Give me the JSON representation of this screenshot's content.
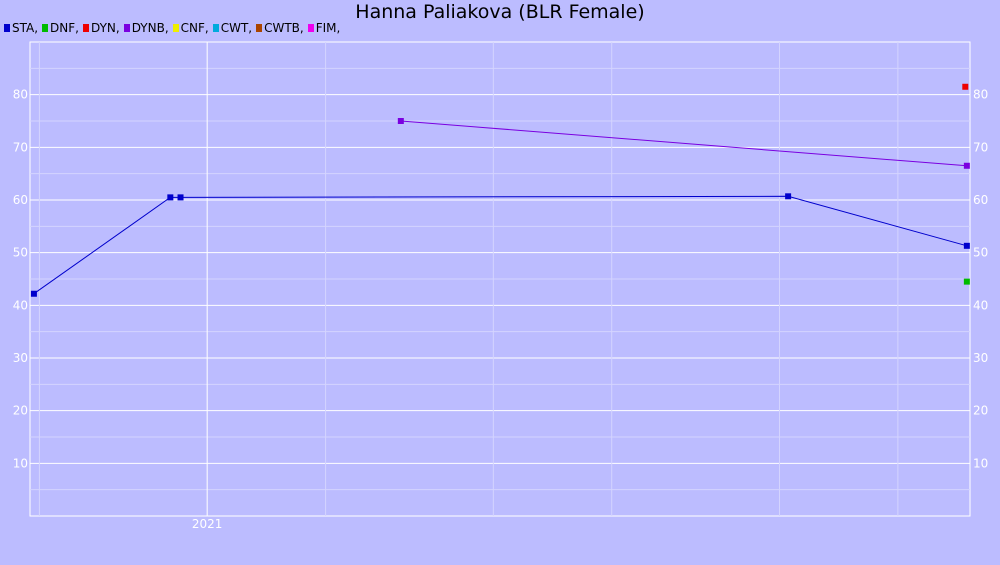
{
  "chart_data": {
    "type": "line",
    "title": "Hanna Paliakova (BLR Female)",
    "xlabel": "",
    "ylabel": "",
    "ylim": [
      0,
      90
    ],
    "xlim": [
      "2020-05-20",
      "2023-09-01"
    ],
    "y_ticks": [
      10,
      20,
      30,
      40,
      50,
      60,
      70,
      80
    ],
    "x_ticks": [
      {
        "date": "2021-01-01",
        "label": "2021"
      }
    ],
    "x_minor_gridlines": [
      "2020-06-01",
      "2021-06-01",
      "2022-01-01",
      "2022-06-01",
      "2023-01-01",
      "2023-06-01"
    ],
    "grid": true,
    "legend_position": "top-left",
    "legend": [
      {
        "label": "STA,",
        "color": "#0000cc"
      },
      {
        "label": "DNF,",
        "color": "#00bb00"
      },
      {
        "label": "DYN,",
        "color": "#ee0000"
      },
      {
        "label": "DYNB,",
        "color": "#7a00e0"
      },
      {
        "label": "CNF,",
        "color": "#eeee00"
      },
      {
        "label": "CWT,",
        "color": "#00aadd"
      },
      {
        "label": "CWTB,",
        "color": "#aa4400"
      },
      {
        "label": "FIM,",
        "color": "#ee00ee"
      }
    ],
    "series": [
      {
        "name": "STA",
        "color": "#0000cc",
        "points": [
          {
            "x": "2020-05-25",
            "y": 42.2
          },
          {
            "x": "2020-11-15",
            "y": 60.5
          },
          {
            "x": "2020-11-28",
            "y": 60.5
          },
          {
            "x": "2023-01-12",
            "y": 60.7
          },
          {
            "x": "2023-08-28",
            "y": 51.3
          }
        ]
      },
      {
        "name": "DNF",
        "color": "#00bb00",
        "points": [
          {
            "x": "2023-08-28",
            "y": 44.5
          }
        ]
      },
      {
        "name": "DYN",
        "color": "#ee0000",
        "points": [
          {
            "x": "2023-08-26",
            "y": 81.5
          }
        ]
      },
      {
        "name": "DYNB",
        "color": "#7a00e0",
        "points": [
          {
            "x": "2021-09-05",
            "y": 75.0
          },
          {
            "x": "2023-08-28",
            "y": 66.5
          }
        ]
      }
    ]
  }
}
